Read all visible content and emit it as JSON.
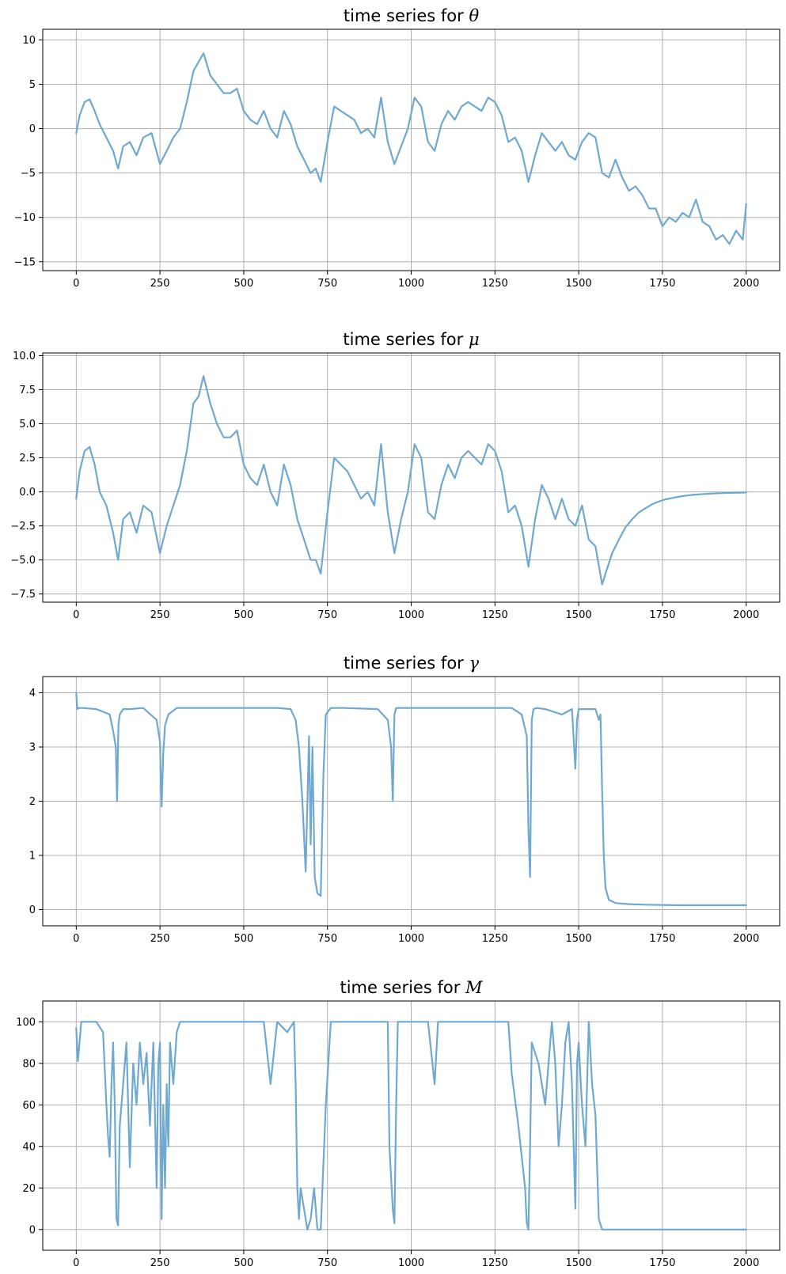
{
  "chart_data": [
    {
      "type": "line",
      "title_prefix": "time series for ",
      "title_symbol": "θ",
      "xlim": [
        -100,
        2100
      ],
      "ylim": [
        -16,
        11.2
      ],
      "xticks": [
        0,
        250,
        500,
        750,
        1000,
        1250,
        1500,
        1750,
        2000
      ],
      "yticks": [
        -15,
        -10,
        -5,
        0,
        5,
        10
      ],
      "color": "#6fa8d0",
      "series": [
        {
          "x": [
            0,
            10,
            25,
            40,
            55,
            70,
            90,
            110,
            125,
            140,
            160,
            180,
            200,
            225,
            250,
            270,
            290,
            310,
            330,
            350,
            365,
            380,
            400,
            420,
            440,
            460,
            480,
            500,
            520,
            540,
            560,
            580,
            600,
            620,
            640,
            660,
            680,
            700,
            715,
            730,
            750,
            770,
            790,
            810,
            830,
            850,
            870,
            890,
            910,
            930,
            950,
            970,
            990,
            1010,
            1030,
            1050,
            1070,
            1090,
            1110,
            1130,
            1150,
            1170,
            1190,
            1210,
            1230,
            1250,
            1270,
            1290,
            1310,
            1330,
            1350,
            1370,
            1390,
            1410,
            1430,
            1450,
            1470,
            1490,
            1510,
            1530,
            1550,
            1570,
            1590,
            1610,
            1630,
            1650,
            1670,
            1690,
            1710,
            1730,
            1750,
            1770,
            1790,
            1810,
            1830,
            1850,
            1870,
            1890,
            1910,
            1930,
            1950,
            1970,
            1990,
            2000
          ],
          "y": [
            -0.5,
            1.5,
            3.0,
            3.3,
            2.0,
            0.5,
            -1.0,
            -2.5,
            -4.5,
            -2.0,
            -1.5,
            -3.0,
            -1.0,
            -0.5,
            -4.0,
            -2.5,
            -1.0,
            0.0,
            3.0,
            6.5,
            7.5,
            8.5,
            6.0,
            5.0,
            4.0,
            4.0,
            4.5,
            2.0,
            1.0,
            0.5,
            2.0,
            0.0,
            -1.0,
            2.0,
            0.5,
            -2.0,
            -3.5,
            -5.0,
            -4.5,
            -6.0,
            -1.5,
            2.5,
            2.0,
            1.5,
            1.0,
            -0.5,
            0.0,
            -1.0,
            3.5,
            -1.5,
            -4.0,
            -2.0,
            0.0,
            3.5,
            2.5,
            -1.5,
            -2.5,
            0.5,
            2.0,
            1.0,
            2.5,
            3.0,
            2.5,
            2.0,
            3.5,
            3.0,
            1.5,
            -1.5,
            -1.0,
            -2.5,
            -6.0,
            -3.0,
            -0.5,
            -1.5,
            -2.5,
            -1.5,
            -3.0,
            -3.5,
            -1.5,
            -0.5,
            -1.0,
            -5.0,
            -5.5,
            -3.5,
            -5.5,
            -7.0,
            -6.5,
            -7.5,
            -9.0,
            -9.0,
            -11.0,
            -10.0,
            -10.5,
            -9.5,
            -10.0,
            -8.0,
            -10.5,
            -11.0,
            -12.5,
            -12.0,
            -13.0,
            -11.5,
            -12.5,
            -8.5
          ]
        }
      ]
    },
    {
      "type": "line",
      "title_prefix": "time series for ",
      "title_symbol": "μ",
      "xlim": [
        -100,
        2100
      ],
      "ylim": [
        -8.1,
        10.2
      ],
      "xticks": [
        0,
        250,
        500,
        750,
        1000,
        1250,
        1500,
        1750,
        2000
      ],
      "yticks": [
        -7.5,
        -5.0,
        -2.5,
        0.0,
        2.5,
        5.0,
        7.5,
        10.0
      ],
      "color": "#6fa8d0",
      "series": [
        {
          "x": [
            0,
            10,
            25,
            40,
            55,
            70,
            90,
            110,
            125,
            140,
            160,
            180,
            200,
            225,
            250,
            270,
            290,
            310,
            330,
            350,
            365,
            380,
            400,
            420,
            440,
            460,
            480,
            500,
            520,
            540,
            560,
            580,
            600,
            620,
            640,
            660,
            680,
            700,
            715,
            730,
            750,
            770,
            790,
            810,
            830,
            850,
            870,
            890,
            910,
            930,
            950,
            970,
            990,
            1010,
            1030,
            1050,
            1070,
            1090,
            1110,
            1130,
            1150,
            1170,
            1190,
            1210,
            1230,
            1250,
            1270,
            1290,
            1310,
            1330,
            1350,
            1370,
            1390,
            1410,
            1430,
            1450,
            1470,
            1490,
            1510,
            1530,
            1550,
            1570,
            1580,
            1600,
            1620,
            1640,
            1660,
            1680,
            1700,
            1720,
            1740,
            1760,
            1780,
            1800,
            1820,
            1840,
            1860,
            1880,
            1900,
            1920,
            1940,
            1960,
            1980,
            2000
          ],
          "y": [
            -0.5,
            1.5,
            3.0,
            3.3,
            2.0,
            0.0,
            -1.0,
            -3.0,
            -5.0,
            -2.0,
            -1.5,
            -3.0,
            -1.0,
            -1.5,
            -4.5,
            -2.5,
            -1.0,
            0.5,
            3.0,
            6.5,
            7.0,
            8.5,
            6.5,
            5.0,
            4.0,
            4.0,
            4.5,
            2.0,
            1.0,
            0.5,
            2.0,
            0.0,
            -1.0,
            2.0,
            0.5,
            -2.0,
            -3.5,
            -5.0,
            -5.0,
            -6.0,
            -1.5,
            2.5,
            2.0,
            1.5,
            0.5,
            -0.5,
            0.0,
            -1.0,
            3.5,
            -1.5,
            -4.5,
            -2.0,
            0.0,
            3.5,
            2.5,
            -1.5,
            -2.0,
            0.5,
            2.0,
            1.0,
            2.5,
            3.0,
            2.5,
            2.0,
            3.5,
            3.0,
            1.5,
            -1.5,
            -1.0,
            -2.5,
            -5.5,
            -2.0,
            0.5,
            -0.5,
            -2.0,
            -0.5,
            -2.0,
            -2.5,
            -1.0,
            -3.5,
            -4.0,
            -6.8,
            -6.0,
            -4.5,
            -3.5,
            -2.6,
            -2.0,
            -1.5,
            -1.2,
            -0.9,
            -0.7,
            -0.55,
            -0.45,
            -0.35,
            -0.28,
            -0.22,
            -0.18,
            -0.15,
            -0.12,
            -0.1,
            -0.08,
            -0.07,
            -0.06,
            -0.05
          ]
        }
      ]
    },
    {
      "type": "line",
      "title_prefix": "time series for ",
      "title_symbol": "γ",
      "xlim": [
        -100,
        2100
      ],
      "ylim": [
        -0.3,
        4.3
      ],
      "xticks": [
        0,
        250,
        500,
        750,
        1000,
        1250,
        1500,
        1750,
        2000
      ],
      "yticks": [
        0,
        1,
        2,
        3,
        4
      ],
      "color": "#6fa8d0",
      "series": [
        {
          "x": [
            0,
            3,
            8,
            20,
            60,
            100,
            110,
            118,
            122,
            126,
            130,
            140,
            160,
            200,
            240,
            250,
            255,
            260,
            265,
            275,
            300,
            400,
            500,
            600,
            640,
            655,
            665,
            675,
            685,
            695,
            700,
            705,
            712,
            720,
            730,
            738,
            745,
            760,
            800,
            900,
            930,
            940,
            945,
            950,
            955,
            960,
            980,
            1050,
            1100,
            1200,
            1300,
            1330,
            1345,
            1350,
            1355,
            1360,
            1365,
            1375,
            1400,
            1450,
            1480,
            1490,
            1495,
            1500,
            1550,
            1560,
            1565,
            1570,
            1575,
            1580,
            1590,
            1610,
            1650,
            1700,
            1800,
            1900,
            2000
          ],
          "y": [
            4.0,
            3.7,
            3.72,
            3.72,
            3.7,
            3.6,
            3.3,
            3.0,
            2.0,
            3.4,
            3.6,
            3.7,
            3.7,
            3.72,
            3.5,
            3.1,
            1.9,
            2.9,
            3.4,
            3.6,
            3.72,
            3.72,
            3.72,
            3.72,
            3.7,
            3.5,
            3.0,
            2.0,
            0.7,
            3.2,
            1.2,
            3.0,
            0.6,
            0.3,
            0.25,
            2.5,
            3.6,
            3.72,
            3.72,
            3.7,
            3.5,
            3.0,
            2.0,
            3.6,
            3.72,
            3.72,
            3.72,
            3.72,
            3.72,
            3.72,
            3.72,
            3.6,
            3.2,
            1.5,
            0.6,
            3.5,
            3.7,
            3.72,
            3.7,
            3.6,
            3.7,
            2.6,
            3.5,
            3.7,
            3.7,
            3.5,
            3.6,
            2.2,
            1.0,
            0.4,
            0.18,
            0.12,
            0.1,
            0.09,
            0.08,
            0.08,
            0.08
          ]
        }
      ]
    },
    {
      "type": "line",
      "title_prefix": "time series for ",
      "title_symbol": "M",
      "xlim": [
        -100,
        2100
      ],
      "ylim": [
        -10,
        110
      ],
      "xticks": [
        0,
        250,
        500,
        750,
        1000,
        1250,
        1500,
        1750,
        2000
      ],
      "yticks": [
        0,
        20,
        40,
        60,
        80,
        100
      ],
      "color": "#6fa8d0",
      "series": [
        {
          "x": [
            0,
            5,
            15,
            30,
            60,
            80,
            90,
            95,
            100,
            105,
            110,
            115,
            120,
            125,
            130,
            140,
            150,
            160,
            170,
            180,
            190,
            200,
            210,
            220,
            230,
            240,
            245,
            250,
            255,
            260,
            265,
            270,
            275,
            280,
            290,
            300,
            310,
            320,
            400,
            500,
            560,
            580,
            600,
            630,
            650,
            655,
            660,
            665,
            670,
            680,
            690,
            700,
            710,
            720,
            730,
            745,
            760,
            800,
            850,
            900,
            930,
            935,
            945,
            950,
            955,
            960,
            970,
            980,
            990,
            1000,
            1050,
            1070,
            1080,
            1100,
            1200,
            1250,
            1290,
            1300,
            1320,
            1340,
            1345,
            1350,
            1355,
            1360,
            1380,
            1400,
            1420,
            1430,
            1440,
            1450,
            1460,
            1470,
            1480,
            1490,
            1495,
            1500,
            1510,
            1520,
            1530,
            1540,
            1550,
            1560,
            1570,
            1580,
            1600,
            1700,
            1800,
            1900,
            2000
          ],
          "y": [
            97,
            81,
            100,
            100,
            100,
            95,
            60,
            45,
            35,
            70,
            90,
            60,
            5,
            2,
            50,
            70,
            90,
            30,
            80,
            60,
            90,
            70,
            85,
            50,
            90,
            20,
            80,
            90,
            5,
            60,
            20,
            70,
            40,
            90,
            70,
            95,
            100,
            100,
            100,
            100,
            100,
            70,
            100,
            95,
            100,
            70,
            20,
            5,
            20,
            10,
            0,
            5,
            20,
            0,
            0,
            60,
            100,
            100,
            100,
            100,
            100,
            40,
            10,
            3,
            60,
            100,
            100,
            100,
            100,
            100,
            100,
            70,
            100,
            100,
            100,
            100,
            100,
            75,
            50,
            20,
            3,
            0,
            40,
            90,
            80,
            60,
            100,
            80,
            40,
            60,
            90,
            100,
            70,
            10,
            80,
            90,
            60,
            40,
            100,
            70,
            55,
            5,
            0,
            0,
            0,
            0,
            0,
            0,
            0
          ]
        }
      ]
    }
  ]
}
